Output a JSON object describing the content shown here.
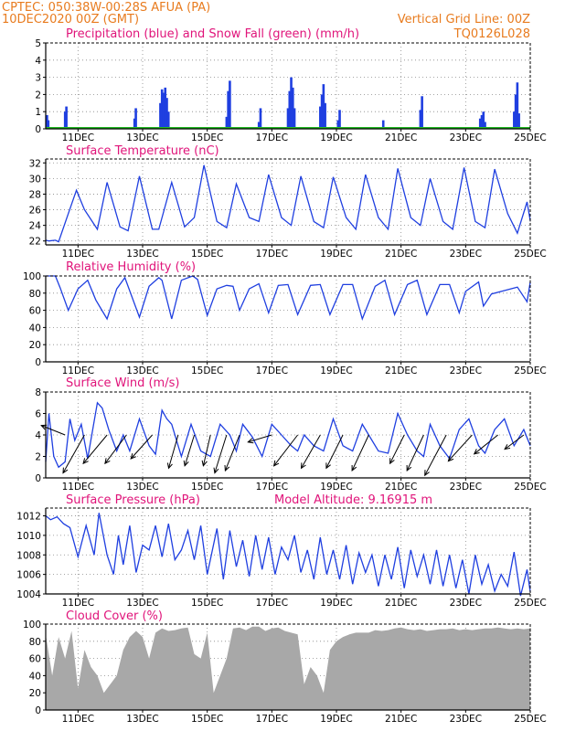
{
  "header": {
    "station_line": "CPTEC:   050:38W-00:28S   AFUA (PA)",
    "date_line": "10DEC2020 00Z (GMT)",
    "grid_note": "Vertical Grid Line: 00Z",
    "code": "TQ0126L028",
    "model_altitude": "Model Altitude: 9.16915 m"
  },
  "colors": {
    "header": "#e87b1e",
    "title": "#e0147a",
    "line": "#1f3fe0",
    "snow": "#22b822",
    "cloud": "#a8a8a8",
    "grid": "#888888"
  },
  "x_axis": {
    "range": [
      0,
      15
    ],
    "tick_positions": [
      1,
      3,
      5,
      7,
      9,
      11,
      13,
      15
    ],
    "tick_labels": [
      "11DEC",
      "13DEC",
      "15DEC",
      "17DEC",
      "19DEC",
      "21DEC",
      "23DEC",
      "25DEC"
    ]
  },
  "chart_data": [
    {
      "type": "bar",
      "title": "Precipitation (blue) and Snow Fall (green) (mm/h)",
      "ylim": [
        0,
        5
      ],
      "yticks": [
        0,
        1,
        2,
        3,
        4,
        5
      ],
      "series": [
        {
          "name": "Precipitation",
          "x": [
            0.04,
            0.08,
            0.6,
            0.64,
            2.75,
            2.79,
            3.55,
            3.6,
            3.65,
            3.7,
            3.75,
            3.8,
            5.6,
            5.65,
            5.7,
            6.6,
            6.65,
            7.5,
            7.55,
            7.6,
            7.65,
            7.7,
            8.5,
            8.55,
            8.6,
            8.65,
            9.05,
            9.1,
            10.45,
            11.6,
            11.65,
            13.45,
            13.5,
            13.55,
            13.6,
            14.5,
            14.55,
            14.6,
            14.65
          ],
          "values": [
            0.8,
            0.5,
            1.0,
            1.3,
            0.6,
            1.2,
            1.5,
            2.3,
            2.1,
            2.4,
            1.8,
            1.0,
            0.7,
            2.2,
            2.8,
            0.4,
            1.2,
            1.2,
            2.2,
            3.0,
            2.4,
            1.2,
            1.3,
            2.0,
            2.6,
            1.5,
            0.5,
            1.1,
            0.5,
            1.1,
            1.9,
            0.6,
            0.8,
            1.0,
            0.4,
            1.0,
            2.0,
            2.7,
            0.9
          ]
        },
        {
          "name": "Snow Fall",
          "x": [
            0,
            15
          ],
          "values": [
            0.05,
            0.05
          ]
        }
      ]
    },
    {
      "type": "line",
      "title": "Surface Temperature (nC)",
      "ylim": [
        21.5,
        32.5
      ],
      "yticks": [
        22,
        24,
        26,
        28,
        30,
        32
      ],
      "series": [
        {
          "name": "Surface Temperature",
          "x": [
            0,
            0.1,
            0.3,
            0.4,
            0.7,
            0.95,
            1.2,
            1.6,
            1.9,
            2.3,
            2.55,
            2.9,
            3.3,
            3.5,
            3.9,
            4.3,
            4.6,
            4.9,
            5.3,
            5.6,
            5.9,
            6.3,
            6.6,
            6.9,
            7.3,
            7.6,
            7.9,
            8.3,
            8.6,
            8.9,
            9.3,
            9.6,
            9.9,
            10.3,
            10.6,
            10.9,
            11.3,
            11.6,
            11.9,
            12.3,
            12.6,
            12.95,
            13.3,
            13.6,
            13.9,
            14.3,
            14.6,
            14.9,
            15
          ],
          "values": [
            22.1,
            22.0,
            22.1,
            21.9,
            25.5,
            28.5,
            26.0,
            23.5,
            29.5,
            23.8,
            23.3,
            30.3,
            23.5,
            23.5,
            29.5,
            23.8,
            25.0,
            31.7,
            24.5,
            23.7,
            29.3,
            25.0,
            24.5,
            30.5,
            25.0,
            24.0,
            30.3,
            24.5,
            23.7,
            30.2,
            25.0,
            23.5,
            30.5,
            25.0,
            23.5,
            31.3,
            25.0,
            24.0,
            30.0,
            24.5,
            23.5,
            31.4,
            24.5,
            23.7,
            31.2,
            25.5,
            23.0,
            27.0,
            24.6
          ]
        }
      ]
    },
    {
      "type": "line",
      "title": "Relative Humidity (%)",
      "ylim": [
        0,
        100
      ],
      "yticks": [
        0,
        20,
        40,
        60,
        80,
        100
      ],
      "series": [
        {
          "name": "Relative Humidity",
          "x": [
            0,
            0.3,
            0.45,
            0.7,
            1.0,
            1.3,
            1.55,
            1.9,
            2.2,
            2.45,
            2.9,
            3.2,
            3.5,
            3.6,
            3.9,
            4.2,
            4.55,
            4.7,
            5.0,
            5.3,
            5.6,
            5.8,
            6.0,
            6.3,
            6.6,
            6.9,
            7.2,
            7.5,
            7.8,
            8.2,
            8.5,
            8.8,
            9.2,
            9.5,
            9.8,
            10.2,
            10.5,
            10.8,
            11.2,
            11.5,
            11.8,
            12.2,
            12.5,
            12.8,
            13.0,
            13.4,
            13.55,
            13.8,
            14.2,
            14.6,
            14.9,
            15
          ],
          "values": [
            100,
            100,
            86,
            60,
            85,
            95,
            72,
            50,
            85,
            98,
            52,
            88,
            98,
            95,
            50,
            95,
            100,
            96,
            54,
            85,
            89,
            88,
            60,
            85,
            91,
            57,
            89,
            90,
            55,
            89,
            90,
            55,
            90,
            90,
            50,
            88,
            95,
            55,
            90,
            95,
            55,
            90,
            90,
            57,
            82,
            93,
            65,
            79,
            83,
            87,
            70,
            93
          ]
        }
      ]
    },
    {
      "type": "line",
      "title": "Surface Wind (m/s)",
      "ylim": [
        0,
        8
      ],
      "yticks": [
        0,
        2,
        4,
        6,
        8
      ],
      "series": [
        {
          "name": "Surface Wind",
          "x": [
            0,
            0.1,
            0.25,
            0.4,
            0.6,
            0.75,
            0.9,
            1.1,
            1.3,
            1.6,
            1.75,
            1.95,
            2.2,
            2.4,
            2.6,
            2.9,
            3.2,
            3.4,
            3.6,
            3.75,
            3.9,
            4.2,
            4.5,
            4.8,
            5.1,
            5.4,
            5.7,
            5.9,
            6.1,
            6.4,
            6.7,
            7.0,
            7.3,
            7.6,
            7.8,
            8.0,
            8.3,
            8.6,
            8.9,
            9.2,
            9.5,
            9.8,
            10.0,
            10.3,
            10.6,
            10.9,
            11.2,
            11.5,
            11.7,
            11.9,
            12.2,
            12.5,
            12.8,
            13.1,
            13.4,
            13.6,
            13.9,
            14.2,
            14.5,
            14.8,
            15
          ],
          "values": [
            1.5,
            6.0,
            2.0,
            1.0,
            1.5,
            5.5,
            3.5,
            5.0,
            1.8,
            7.0,
            6.5,
            4.5,
            2.5,
            4.0,
            2.5,
            5.5,
            3.0,
            2.2,
            6.3,
            5.5,
            5.0,
            2.0,
            5.0,
            2.5,
            2.0,
            5.0,
            4.0,
            2.5,
            5.0,
            3.8,
            2.0,
            5.0,
            4.0,
            3.0,
            2.5,
            4.0,
            3.0,
            2.5,
            5.5,
            3.0,
            2.5,
            5.0,
            4.0,
            2.5,
            2.3,
            6.0,
            4.0,
            2.5,
            2.0,
            5.0,
            3.0,
            1.8,
            4.5,
            5.5,
            3.0,
            2.3,
            4.5,
            5.5,
            3.0,
            4.5,
            3.0
          ]
        }
      ],
      "vectors": {
        "x": [
          0.6,
          1.2,
          1.9,
          2.5,
          3.3,
          4.1,
          4.6,
          5.1,
          5.6,
          6.0,
          7.0,
          7.8,
          8.5,
          9.2,
          10.0,
          11.1,
          11.7,
          12.4,
          13.2,
          14.0,
          14.8
        ],
        "y": [
          4,
          4,
          4,
          4,
          4,
          4,
          4,
          4,
          4,
          4,
          4,
          4,
          4,
          4,
          4,
          4,
          4,
          4,
          4,
          4,
          4
        ],
        "u": [
          -1.0,
          -0.9,
          -1.0,
          -0.9,
          -0.9,
          -0.4,
          -0.4,
          -0.3,
          -0.5,
          -0.6,
          -1.0,
          -1.0,
          -0.8,
          -0.7,
          -0.7,
          -0.6,
          -0.7,
          -0.9,
          -1.0,
          -1.0,
          -0.8
        ],
        "v": [
          0.4,
          -1.6,
          -1.2,
          -1.2,
          -1.0,
          -1.4,
          -1.3,
          -1.3,
          -1.6,
          -1.5,
          -0.3,
          -1.3,
          -1.4,
          -1.4,
          -1.5,
          -1.2,
          -1.5,
          -1.7,
          -1.1,
          -0.8,
          -0.6
        ]
      }
    },
    {
      "type": "line",
      "title": "Surface Pressure (hPa)",
      "ylim": [
        1004,
        1012.8
      ],
      "yticks": [
        1004,
        1006,
        1008,
        1010,
        1012
      ],
      "series": [
        {
          "name": "Surface Pressure",
          "x": [
            0,
            0.15,
            0.35,
            0.55,
            0.75,
            1.0,
            1.25,
            1.5,
            1.65,
            1.9,
            2.1,
            2.25,
            2.4,
            2.6,
            2.8,
            3.0,
            3.2,
            3.4,
            3.6,
            3.8,
            4.0,
            4.2,
            4.4,
            4.6,
            4.8,
            5.0,
            5.3,
            5.5,
            5.7,
            5.9,
            6.1,
            6.3,
            6.5,
            6.7,
            6.9,
            7.1,
            7.3,
            7.5,
            7.7,
            7.9,
            8.1,
            8.3,
            8.5,
            8.7,
            8.9,
            9.1,
            9.3,
            9.5,
            9.7,
            9.9,
            10.1,
            10.3,
            10.5,
            10.7,
            10.9,
            11.1,
            11.3,
            11.5,
            11.7,
            11.9,
            12.1,
            12.3,
            12.5,
            12.7,
            12.9,
            13.1,
            13.3,
            13.5,
            13.7,
            13.9,
            14.1,
            14.3,
            14.5,
            14.7,
            14.9,
            15
          ],
          "values": [
            1012.0,
            1011.6,
            1011.9,
            1011.2,
            1010.8,
            1007.8,
            1011.0,
            1008.0,
            1012.3,
            1008.0,
            1006.0,
            1010.0,
            1007.0,
            1011.0,
            1006.2,
            1009.0,
            1008.5,
            1011.0,
            1007.8,
            1011.2,
            1007.5,
            1008.5,
            1010.5,
            1007.5,
            1011.0,
            1006.0,
            1010.7,
            1005.5,
            1010.5,
            1006.8,
            1009.5,
            1005.8,
            1010.0,
            1006.5,
            1009.8,
            1006.0,
            1008.8,
            1007.5,
            1010.0,
            1006.2,
            1008.5,
            1005.5,
            1009.8,
            1006.0,
            1008.5,
            1005.5,
            1009.0,
            1005.0,
            1008.2,
            1006.2,
            1008.0,
            1004.8,
            1008.0,
            1005.5,
            1008.8,
            1004.6,
            1008.5,
            1005.8,
            1008.0,
            1005.0,
            1008.5,
            1004.8,
            1008.0,
            1004.6,
            1007.5,
            1004.0,
            1008.0,
            1005.0,
            1007.0,
            1004.3,
            1006.0,
            1004.8,
            1008.3,
            1003.8,
            1006.5,
            1004.2
          ]
        }
      ]
    },
    {
      "type": "area",
      "title": "Cloud Cover (%)",
      "ylim": [
        0,
        100
      ],
      "yticks": [
        0,
        20,
        40,
        60,
        80,
        100
      ],
      "series": [
        {
          "name": "Cloud Cover",
          "x": [
            0,
            0.2,
            0.4,
            0.6,
            0.8,
            1.0,
            1.2,
            1.4,
            1.6,
            1.8,
            2.0,
            2.2,
            2.4,
            2.6,
            2.8,
            3.0,
            3.2,
            3.4,
            3.6,
            3.8,
            4.0,
            4.2,
            4.4,
            4.6,
            4.8,
            5.0,
            5.2,
            5.4,
            5.6,
            5.8,
            6.0,
            6.2,
            6.4,
            6.6,
            6.8,
            7.0,
            7.2,
            7.4,
            7.6,
            7.8,
            8.0,
            8.2,
            8.4,
            8.6,
            8.8,
            9.0,
            9.2,
            9.4,
            9.6,
            9.8,
            10.0,
            10.2,
            10.4,
            10.6,
            10.8,
            11.0,
            11.2,
            11.4,
            11.6,
            11.8,
            12.0,
            12.2,
            12.4,
            12.6,
            12.8,
            13.0,
            13.2,
            13.4,
            13.6,
            13.8,
            14.0,
            14.2,
            14.4,
            14.6,
            14.8,
            15
          ],
          "values": [
            88,
            40,
            85,
            60,
            92,
            25,
            70,
            50,
            40,
            20,
            30,
            40,
            70,
            85,
            92,
            85,
            60,
            90,
            95,
            92,
            93,
            95,
            96,
            65,
            60,
            90,
            20,
            40,
            60,
            95,
            96,
            93,
            97,
            97,
            92,
            95,
            96,
            92,
            90,
            88,
            30,
            50,
            40,
            20,
            70,
            80,
            85,
            88,
            90,
            90,
            90,
            93,
            92,
            93,
            95,
            96,
            94,
            93,
            94,
            92,
            93,
            94,
            94,
            95,
            93,
            94,
            93,
            94,
            95,
            95,
            96,
            95,
            94,
            95,
            94,
            95
          ]
        }
      ]
    }
  ]
}
